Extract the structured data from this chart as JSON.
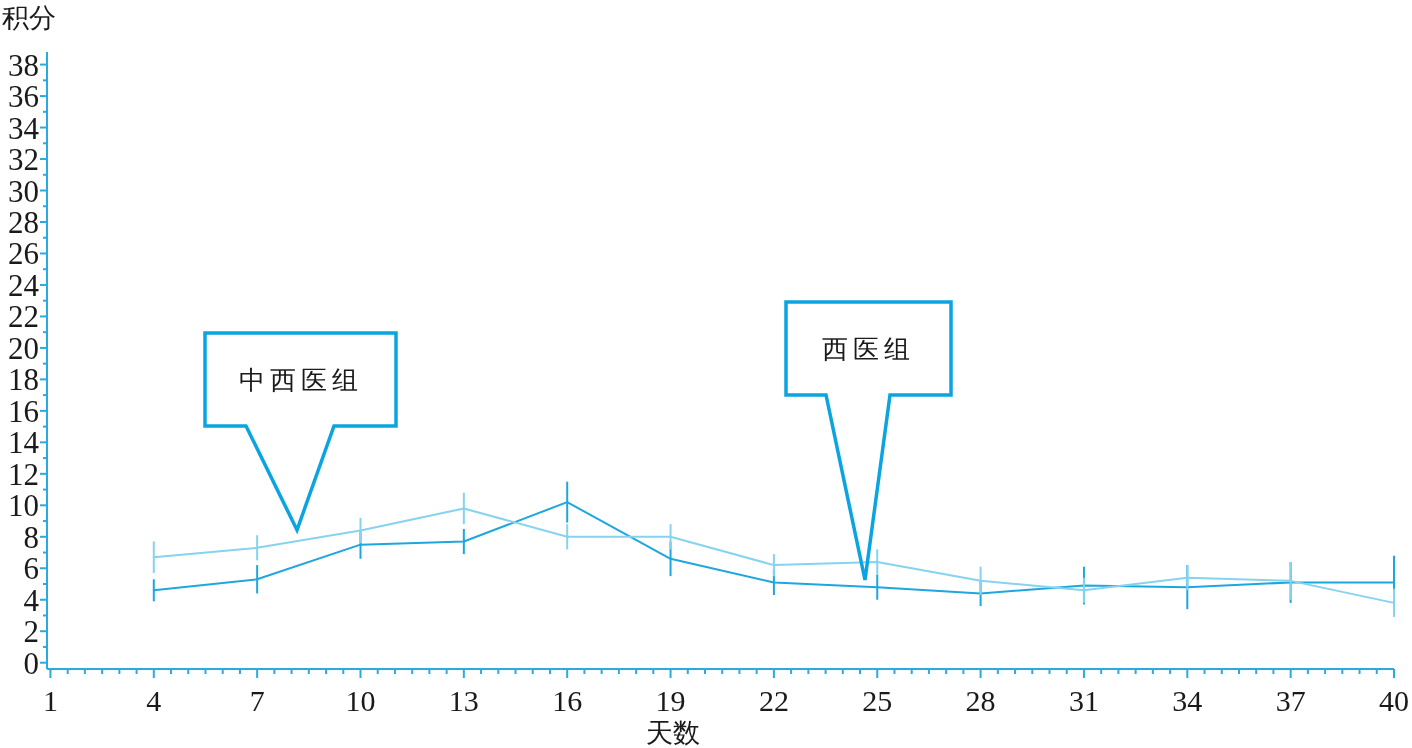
{
  "chart_data": {
    "type": "line",
    "xlabel": "天数",
    "ylabel": "积分",
    "x": [
      4,
      7,
      10,
      13,
      16,
      19,
      22,
      25,
      28,
      31,
      34,
      37,
      40
    ],
    "xlim": [
      0.9,
      40
    ],
    "xticks": [
      1,
      {
        "value": 1.5,
        "label": null
      },
      {
        "value": 2,
        "label": null
      },
      {
        "value": 2.5,
        "label": null
      },
      {
        "value": 3,
        "label": null
      },
      {
        "value": 3.5,
        "label": null
      },
      4,
      {
        "value": 4.5,
        "label": null
      },
      {
        "value": 5,
        "label": null
      },
      {
        "value": 5.5,
        "label": null
      },
      {
        "value": 6,
        "label": null
      },
      {
        "value": 6.5,
        "label": null
      },
      7,
      {
        "value": 7.5,
        "label": null
      },
      {
        "value": 8,
        "label": null
      },
      {
        "value": 8.5,
        "label": null
      },
      {
        "value": 9,
        "label": null
      },
      {
        "value": 9.5,
        "label": null
      },
      10,
      {
        "value": 10.5,
        "label": null
      },
      {
        "value": 11,
        "label": null
      },
      {
        "value": 11.5,
        "label": null
      },
      {
        "value": 12,
        "label": null
      },
      {
        "value": 12.5,
        "label": null
      },
      13,
      {
        "value": 13.5,
        "label": null
      },
      {
        "value": 14,
        "label": null
      },
      {
        "value": 14.5,
        "label": null
      },
      {
        "value": 15,
        "label": null
      },
      {
        "value": 15.5,
        "label": null
      },
      16,
      {
        "value": 16.5,
        "label": null
      },
      {
        "value": 17,
        "label": null
      },
      {
        "value": 17.5,
        "label": null
      },
      {
        "value": 18,
        "label": null
      },
      {
        "value": 18.5,
        "label": null
      },
      19,
      {
        "value": 19.5,
        "label": null
      },
      {
        "value": 20,
        "label": null
      },
      {
        "value": 20.5,
        "label": null
      },
      {
        "value": 21,
        "label": null
      },
      {
        "value": 21.5,
        "label": null
      },
      22,
      {
        "value": 22.5,
        "label": null
      },
      {
        "value": 23,
        "label": null
      },
      {
        "value": 23.5,
        "label": null
      },
      {
        "value": 24,
        "label": null
      },
      {
        "value": 24.5,
        "label": null
      },
      25,
      {
        "value": 25.5,
        "label": null
      },
      {
        "value": 26,
        "label": null
      },
      {
        "value": 26.5,
        "label": null
      },
      {
        "value": 27,
        "label": null
      },
      {
        "value": 27.5,
        "label": null
      },
      28,
      {
        "value": 28.5,
        "label": null
      },
      {
        "value": 29,
        "label": null
      },
      {
        "value": 29.5,
        "label": null
      },
      {
        "value": 30,
        "label": null
      },
      {
        "value": 30.5,
        "label": null
      },
      31,
      {
        "value": 31.5,
        "label": null
      },
      {
        "value": 32,
        "label": null
      },
      {
        "value": 32.5,
        "label": null
      },
      {
        "value": 33,
        "label": null
      },
      {
        "value": 33.5,
        "label": null
      },
      34,
      {
        "value": 34.5,
        "label": null
      },
      {
        "value": 35,
        "label": null
      },
      {
        "value": 35.5,
        "label": null
      },
      {
        "value": 36,
        "label": null
      },
      {
        "value": 36.5,
        "label": null
      },
      37,
      {
        "value": 37.5,
        "label": null
      },
      {
        "value": 38,
        "label": null
      },
      {
        "value": 38.5,
        "label": null
      },
      {
        "value": 39,
        "label": null
      },
      {
        "value": 39.5,
        "label": null
      },
      40
    ],
    "ylim": [
      -0.4,
      38.8
    ],
    "yticks": [
      0,
      {
        "value": 1,
        "label": null
      },
      2,
      {
        "value": 3,
        "label": null
      },
      4,
      {
        "value": 5,
        "label": null
      },
      6,
      {
        "value": 7,
        "label": null
      },
      8,
      {
        "value": 9,
        "label": null
      },
      10,
      {
        "value": 11,
        "label": null
      },
      12,
      {
        "value": 13,
        "label": null
      },
      14,
      {
        "value": 15,
        "label": null
      },
      16,
      {
        "value": 17,
        "label": null
      },
      18,
      {
        "value": 19,
        "label": null
      },
      20,
      {
        "value": 21,
        "label": null
      },
      22,
      {
        "value": 23,
        "label": null
      },
      24,
      {
        "value": 25,
        "label": null
      },
      26,
      {
        "value": 27,
        "label": null
      },
      28,
      {
        "value": 29,
        "label": null
      },
      30,
      {
        "value": 31,
        "label": null
      },
      32,
      {
        "value": 33,
        "label": null
      },
      34,
      {
        "value": 35,
        "label": null
      },
      36,
      {
        "value": 37,
        "label": null
      },
      38
    ],
    "series": [
      {
        "color": "#1ea6de",
        "values": [
          4.6,
          5.3,
          7.5,
          7.7,
          10.2,
          6.6,
          5.1,
          4.8,
          4.4,
          4.9,
          4.8,
          5.1,
          5.1
        ],
        "errors": [
          0.7,
          0.9,
          0.9,
          0.8,
          1.3,
          1.1,
          0.8,
          0.8,
          0.8,
          1.2,
          1.4,
          1.3,
          1.7
        ]
      },
      {
        "color": "#86d3f0",
        "values": [
          6.7,
          7.3,
          8.4,
          9.8,
          8.0,
          8.0,
          6.2,
          6.4,
          5.2,
          4.6,
          5.4,
          5.2,
          3.8
        ],
        "errors": [
          1.0,
          0.8,
          0.8,
          1.0,
          0.8,
          0.8,
          0.7,
          0.8,
          0.9,
          0.8,
          0.8,
          1.2,
          0.9
        ]
      }
    ],
    "annotations": [
      "中西医组",
      "西医组"
    ]
  }
}
